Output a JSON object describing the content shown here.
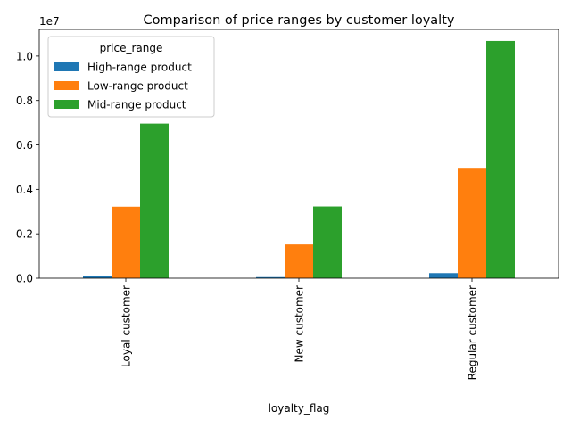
{
  "chart_data": {
    "type": "bar",
    "title": "Comparison of price ranges by customer loyalty",
    "xlabel": "loyalty_flag",
    "ylabel": "",
    "y_scale_label": "1e7",
    "y_tick_labels": [
      "0.0",
      "0.2",
      "0.4",
      "0.6",
      "0.8",
      "1.0"
    ],
    "y_ticks": [
      0,
      2000000,
      4000000,
      6000000,
      8000000,
      10000000
    ],
    "ylim": [
      0,
      11200000
    ],
    "categories": [
      "Loyal customer",
      "New customer",
      "Regular customer"
    ],
    "legend_title": "price_range",
    "legend_position": "top-left",
    "grid": false,
    "series": [
      {
        "name": "High-range product",
        "color": "#1f77b4",
        "values": [
          100000,
          50000,
          230000
        ]
      },
      {
        "name": "Low-range product",
        "color": "#ff7f0e",
        "values": [
          3220000,
          1520000,
          4970000
        ]
      },
      {
        "name": "Mid-range product",
        "color": "#2ca02c",
        "values": [
          6960000,
          3230000,
          10680000
        ]
      }
    ]
  }
}
